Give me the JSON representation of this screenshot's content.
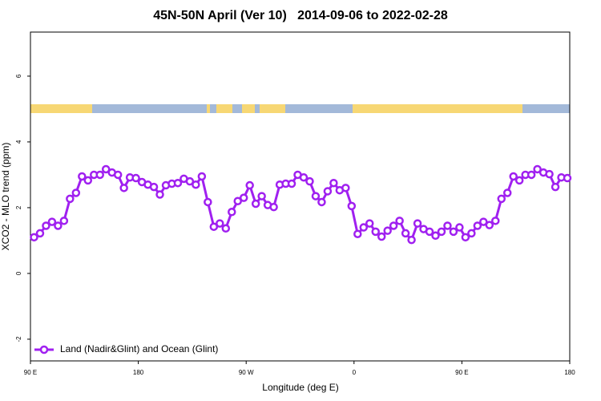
{
  "chart_data": {
    "type": "line",
    "title": "45N-50N April (Ver 10)   2014-09-06 to 2022-02-28",
    "x_label": "Longitude (deg E)",
    "y_label": "XCO2 - MLO trend (ppm)",
    "x": [
      93,
      98,
      103,
      108,
      113,
      118,
      123,
      128,
      133,
      138,
      143,
      148,
      153,
      158,
      163,
      168,
      173,
      178,
      183,
      188,
      193,
      198,
      203,
      208,
      213,
      218,
      223,
      228,
      233,
      238,
      243,
      248,
      253,
      258,
      263,
      268,
      273,
      278,
      283,
      288,
      293,
      298,
      303,
      308,
      313,
      318,
      323,
      328,
      333,
      338,
      343,
      348,
      353,
      358,
      363,
      368,
      373,
      378,
      383,
      388,
      393,
      398,
      403,
      408,
      413,
      418,
      423,
      428,
      433,
      438,
      443,
      448,
      453,
      458,
      463,
      468,
      473,
      478,
      483,
      488,
      493,
      498,
      503,
      508,
      513,
      518,
      523,
      528,
      533,
      538
    ],
    "series": [
      {
        "name": "Land (Nadir&Glint) and Ocean (Glint)",
        "color": "#a020f0",
        "values": [
          1.1,
          1.22,
          1.45,
          1.57,
          1.45,
          1.6,
          2.27,
          2.45,
          2.95,
          2.83,
          3.0,
          3.0,
          3.17,
          3.07,
          3.0,
          2.6,
          2.92,
          2.9,
          2.78,
          2.7,
          2.63,
          2.4,
          2.68,
          2.73,
          2.75,
          2.88,
          2.8,
          2.7,
          2.95,
          2.17,
          1.42,
          1.52,
          1.37,
          1.87,
          2.2,
          2.3,
          2.68,
          2.12,
          2.35,
          2.08,
          2.02,
          2.7,
          2.73,
          2.73,
          3.0,
          2.92,
          2.8,
          2.35,
          2.17,
          2.5,
          2.75,
          2.53,
          2.6,
          2.05,
          1.2,
          1.4,
          1.52,
          1.27,
          1.12,
          1.3,
          1.45,
          1.6,
          1.22,
          1.02,
          1.52,
          1.35,
          1.27,
          1.15,
          1.27,
          1.45,
          1.27,
          1.4,
          1.1,
          1.22,
          1.45,
          1.57,
          1.47,
          1.6,
          2.27,
          2.45,
          2.95,
          2.83,
          3.0,
          3.0,
          3.17,
          3.07,
          3.02,
          2.63,
          2.92,
          2.9
        ]
      }
    ],
    "xlim": [
      90,
      540
    ],
    "xticks": [
      {
        "value": 90,
        "label": "90 E"
      },
      {
        "value": 180,
        "label": "180"
      },
      {
        "value": 270,
        "label": "90 W"
      },
      {
        "value": 360,
        "label": "0"
      },
      {
        "value": 450,
        "label": "90 E"
      },
      {
        "value": 540,
        "label": "180"
      }
    ],
    "ylim": [
      -2.66,
      7.34
    ],
    "yticks": [
      -2,
      0,
      2,
      4,
      6
    ],
    "legend": "bottom-left"
  }
}
